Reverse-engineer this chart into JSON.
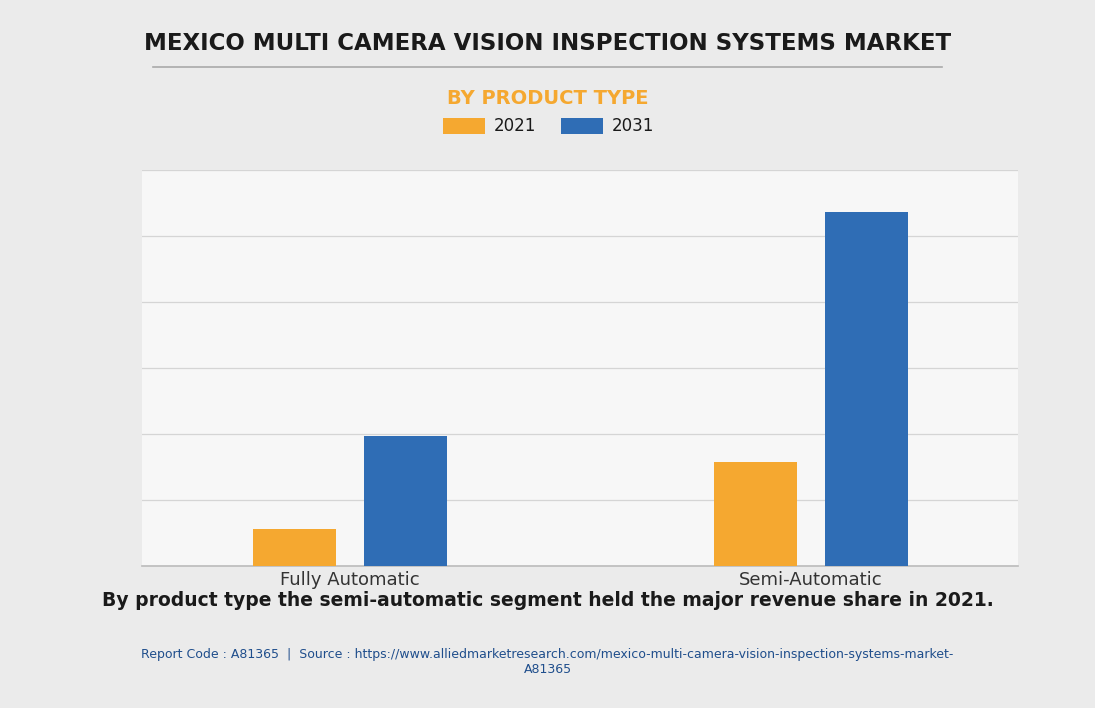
{
  "title": "MEXICO MULTI CAMERA VISION INSPECTION SYSTEMS MARKET",
  "subtitle": "BY PRODUCT TYPE",
  "categories": [
    "Fully Automatic",
    "Semi-Automatic"
  ],
  "legend_labels": [
    "2021",
    "2031"
  ],
  "values_2021": [
    1.0,
    2.8
  ],
  "values_2031": [
    3.5,
    9.5
  ],
  "color_2021": "#F5A830",
  "color_2031": "#2F6DB5",
  "subtitle_color": "#F5A830",
  "background_color": "#EBEBEB",
  "chart_bg_color": "#F7F7F7",
  "title_color": "#1a1a1a",
  "grid_color": "#D5D5D5",
  "annotation_text": "By product type the semi-automatic segment held the major revenue share in 2021.",
  "source_text": "Report Code : A81365  |  Source : https://www.alliedmarketresearch.com/mexico-multi-camera-vision-inspection-systems-market-\nA81365",
  "source_color": "#1F4E8C",
  "annotation_color": "#1a1a1a",
  "bar_width": 0.18,
  "bar_gap": 0.06
}
